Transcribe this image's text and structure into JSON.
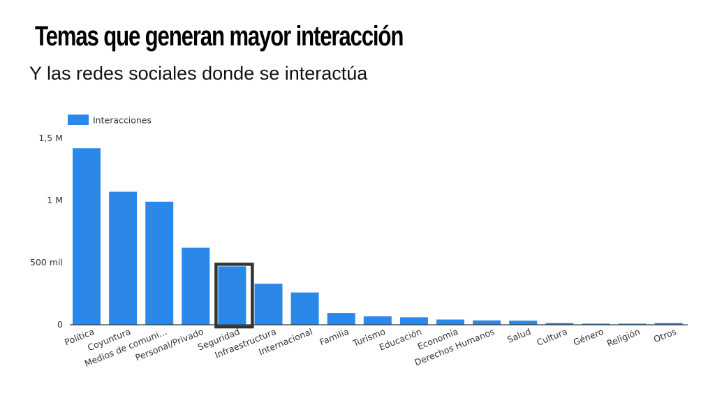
{
  "title": "Temas que generan mayor interacción",
  "subtitle": "Y las redes sociales donde se interactúa",
  "chart_data": {
    "type": "bar",
    "series": [
      {
        "name": "Interacciones",
        "color": "#2B87E8",
        "values": [
          1420000,
          1070000,
          990000,
          620000,
          470000,
          330000,
          260000,
          95000,
          68000,
          60000,
          42000,
          35000,
          33000,
          14000,
          9000,
          9000,
          14000
        ]
      }
    ],
    "categories": [
      "Política",
      "Coyuntura",
      "Medios de comuni…",
      "Personal/Privado",
      "Seguridad",
      "Infraestructura",
      "Internacional",
      "Familia",
      "Turismo",
      "Educación",
      "Economía",
      "Derechos Humanos",
      "Salud",
      "Cultura",
      "Género",
      "Religión",
      "Otros"
    ],
    "ylim": [
      0,
      1500000
    ],
    "yticks": [
      {
        "value": 0,
        "label": "0"
      },
      {
        "value": 500000,
        "label": "500 mil"
      },
      {
        "value": 1000000,
        "label": "1 M"
      },
      {
        "value": 1500000,
        "label": "1,5 M"
      }
    ],
    "legend_position": "top-left",
    "grid": false,
    "highlighted_category": "Seguridad",
    "highlight_color": "#333333"
  }
}
